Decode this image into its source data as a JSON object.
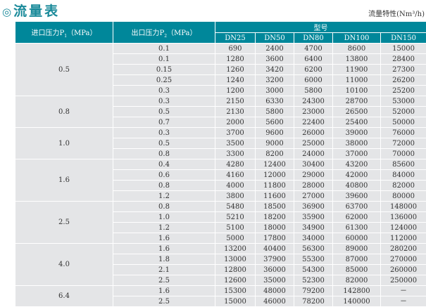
{
  "title": "流量表",
  "title_icon": "double-circle-icon",
  "unit_label": "流量特性(Nm³/h)",
  "header": {
    "p1": "进口压力P",
    "p1_sub": "1",
    "p1_unit": "（MPa）",
    "p2": "出口压力P",
    "p2_sub": "2",
    "p2_unit": "（MPa）",
    "model": "型号",
    "models": [
      "DN25",
      "DN50",
      "DN80",
      "DN100",
      "DN150"
    ]
  },
  "colors": {
    "header_bg": "#00879a",
    "cell_bg": "#e4e5e7",
    "title": "#1a8a9a"
  },
  "groups": [
    {
      "p1": "0.5",
      "rows": [
        [
          "0.1",
          "690",
          "2400",
          "4700",
          "8600",
          "15000"
        ],
        [
          "0.1",
          "1280",
          "3600",
          "6400",
          "13800",
          "28400"
        ],
        [
          "0.15",
          "1260",
          "3420",
          "6200",
          "11900",
          "27300"
        ],
        [
          "0.25",
          "1240",
          "3200",
          "6000",
          "11000",
          "26200"
        ],
        [
          "0.3",
          "1200",
          "3000",
          "5800",
          "10100",
          "25200"
        ]
      ]
    },
    {
      "p1": "0.8",
      "rows": [
        [
          "0.3",
          "2150",
          "6330",
          "24300",
          "28700",
          "53000"
        ],
        [
          "0.5",
          "2130",
          "5800",
          "23000",
          "26500",
          "52000"
        ],
        [
          "0.7",
          "2000",
          "5600",
          "22400",
          "25400",
          "50000"
        ]
      ]
    },
    {
      "p1": "1.0",
      "rows": [
        [
          "0.3",
          "3700",
          "9600",
          "26000",
          "39000",
          "76000"
        ],
        [
          "0.5",
          "3500",
          "9000",
          "25000",
          "38000",
          "72000"
        ],
        [
          "0.8",
          "3300",
          "8200",
          "24000",
          "37000",
          "70000"
        ]
      ]
    },
    {
      "p1": "1.6",
      "rows": [
        [
          "0.4",
          "4280",
          "12400",
          "30400",
          "43200",
          "85600"
        ],
        [
          "0.6",
          "4160",
          "12000",
          "29000",
          "42000",
          "84000"
        ],
        [
          "0.8",
          "4000",
          "11800",
          "28000",
          "40800",
          "82000"
        ],
        [
          "1.2",
          "3800",
          "11600",
          "27000",
          "39600",
          "80000"
        ]
      ]
    },
    {
      "p1": "2.5",
      "rows": [
        [
          "0.8",
          "5480",
          "18500",
          "36900",
          "63700",
          "148000"
        ],
        [
          "1.0",
          "5210",
          "18200",
          "35900",
          "62000",
          "136000"
        ],
        [
          "1.2",
          "5100",
          "18000",
          "34900",
          "61300",
          "124000"
        ],
        [
          "1.6",
          "5000",
          "17800",
          "34000",
          "60000",
          "112000"
        ]
      ]
    },
    {
      "p1": "4.0",
      "rows": [
        [
          "1.6",
          "13200",
          "40400",
          "56300",
          "89000",
          "280200"
        ],
        [
          "1.8",
          "13000",
          "37900",
          "55300",
          "87000",
          "270000"
        ],
        [
          "2.1",
          "12800",
          "36000",
          "54300",
          "85000",
          "260000"
        ],
        [
          "2.5",
          "12600",
          "35000",
          "52300",
          "82000",
          "250000"
        ]
      ]
    },
    {
      "p1": "6.4",
      "rows": [
        [
          "1.6",
          "15300",
          "48000",
          "79200",
          "142800",
          "－"
        ],
        [
          "2.5",
          "15000",
          "46000",
          "78200",
          "140000",
          "－"
        ]
      ]
    }
  ]
}
